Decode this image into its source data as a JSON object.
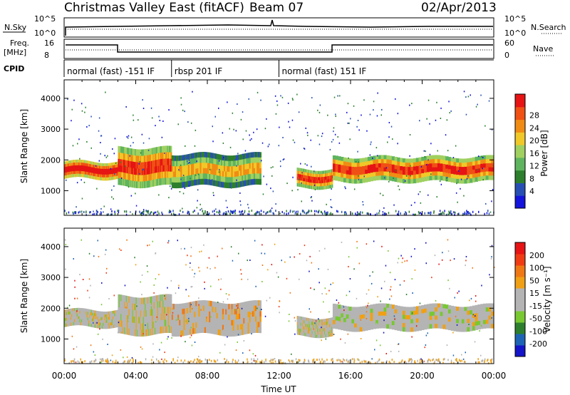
{
  "header": {
    "station": "Christmas Valley East (fitACF)",
    "beam": "Beam 07",
    "date": "02/Apr/2013"
  },
  "aux_labels": {
    "nsky": "N.Sky",
    "nsky_ticks": [
      "10^5",
      "10^0"
    ],
    "nsearch": "N.Search",
    "nsearch_ticks": [
      "10^5",
      "10^0"
    ],
    "freq": "Freq.",
    "freq_unit": "[MHz]",
    "freq_ticks": [
      "16",
      "8"
    ],
    "nave": "Nave",
    "nave_ticks": [
      "60",
      "0"
    ],
    "cpid": "CPID"
  },
  "cpid_segments": [
    {
      "label": "normal (fast) -151 IF",
      "start_hr": 0,
      "end_hr": 6
    },
    {
      "label": "rbsp 201 IF",
      "start_hr": 6,
      "end_hr": 12
    },
    {
      "label": "normal (fast) 151 IF",
      "start_hr": 12,
      "end_hr": 24
    }
  ],
  "colors": {
    "power": [
      "#1414dc",
      "#2850b4",
      "#2d7f2d",
      "#5fb45f",
      "#a0d060",
      "#f0c828",
      "#f08c14",
      "#f05014",
      "#e61414"
    ],
    "velocity": [
      "#1414c8",
      "#1e64b4",
      "#2d7f2d",
      "#78c832",
      "#b4b4b4",
      "#b4b4b4",
      "#f0a014",
      "#f07814",
      "#f03c14",
      "#e61414"
    ]
  },
  "chart_data": [
    {
      "type": "heatmap",
      "panel": "power",
      "ylabel": "Slant Range [km]",
      "xlabel": "Time UT",
      "xlim": [
        0,
        24
      ],
      "ylim": [
        200,
        4600
      ],
      "yticks": [
        1000,
        2000,
        3000,
        4000
      ],
      "xtick_labels": [
        "00:00",
        "04:00",
        "08:00",
        "12:00",
        "16:00",
        "20:00",
        "00:00"
      ],
      "colorbar": {
        "label": "Power [dB]",
        "ticks": [
          "4",
          "8",
          "12",
          "16",
          "20",
          "24",
          "28"
        ]
      },
      "bands": [
        {
          "t0": 0.0,
          "t1": 3.0,
          "r0": 1400,
          "r1": 1950,
          "level": 8
        },
        {
          "t0": 3.0,
          "t1": 6.0,
          "r0": 1150,
          "r1": 2400,
          "level": 7
        },
        {
          "t0": 6.0,
          "t1": 11.0,
          "r0": 1150,
          "r1": 2200,
          "level": 5
        },
        {
          "t0": 13.0,
          "t1": 15.0,
          "r0": 1100,
          "r1": 1700,
          "level": 7
        },
        {
          "t0": 15.0,
          "t1": 24.0,
          "r0": 1300,
          "r1": 2100,
          "level": 7
        }
      ]
    },
    {
      "type": "heatmap",
      "panel": "velocity",
      "ylabel": "Slant Range [km]",
      "xlabel": "Time UT",
      "xlim": [
        0,
        24
      ],
      "ylim": [
        200,
        4600
      ],
      "yticks": [
        1000,
        2000,
        3000,
        4000
      ],
      "xtick_labels": [
        "00:00",
        "04:00",
        "08:00",
        "12:00",
        "16:00",
        "20:00",
        "00:00"
      ],
      "colorbar": {
        "label": "Velocity [m s⁻¹]",
        "ticks": [
          "200",
          "100",
          "50",
          "15",
          "-15",
          "-50",
          "-100",
          "-200"
        ]
      },
      "bands": [
        {
          "t0": 0.0,
          "t1": 3.0,
          "r0": 1400,
          "r1": 1950,
          "velocity": -10
        },
        {
          "t0": 3.0,
          "t1": 6.0,
          "r0": 1150,
          "r1": 2400,
          "velocity": -10
        },
        {
          "t0": 6.0,
          "t1": 11.0,
          "r0": 1150,
          "r1": 2200,
          "velocity": -40
        },
        {
          "t0": 13.0,
          "t1": 15.0,
          "r0": 1100,
          "r1": 1700,
          "velocity": -10
        },
        {
          "t0": 15.0,
          "t1": 24.0,
          "r0": 1300,
          "r1": 2100,
          "velocity": -10
        }
      ]
    }
  ]
}
